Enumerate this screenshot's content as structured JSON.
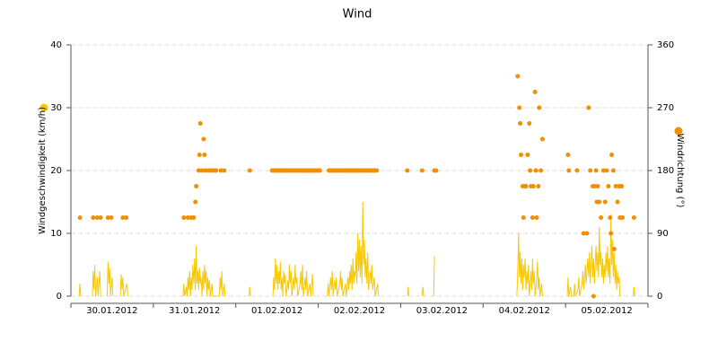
{
  "chart_data": {
    "type": "line-scatter",
    "title": "Wind",
    "xlim": [
      0,
      7
    ],
    "xticks": [
      {
        "value": 0.5,
        "label": "30.01.2012"
      },
      {
        "value": 1.5,
        "label": "31.01.2012"
      },
      {
        "value": 2.5,
        "label": "01.02.2012"
      },
      {
        "value": 3.5,
        "label": "02.02.2012"
      },
      {
        "value": 4.5,
        "label": "03.02.2012"
      },
      {
        "value": 5.5,
        "label": "04.02.2012"
      },
      {
        "value": 6.5,
        "label": "05.02.2012"
      }
    ],
    "ylim": [
      0,
      40
    ],
    "yticks": [
      0,
      10,
      20,
      30,
      40
    ],
    "y2lim": [
      0,
      360
    ],
    "y2ticks": [
      0,
      90,
      180,
      270,
      360
    ],
    "grid": true,
    "series": [
      {
        "name": "Windgeschwindigkeit (km/h)",
        "color": "#f9c800",
        "type": "line",
        "axis": "y",
        "x": [
          0.1,
          0.11,
          0.12,
          0.13,
          0.26,
          0.27,
          0.28,
          0.29,
          0.3,
          0.32,
          0.33,
          0.35,
          0.36,
          0.37,
          0.44,
          0.45,
          0.46,
          0.47,
          0.48,
          0.5,
          0.51,
          0.52,
          0.6,
          0.61,
          0.62,
          0.63,
          0.64,
          0.68,
          0.69,
          0.7,
          1.36,
          1.37,
          1.38,
          1.4,
          1.41,
          1.42,
          1.43,
          1.44,
          1.45,
          1.46,
          1.47,
          1.48,
          1.49,
          1.5,
          1.51,
          1.52,
          1.53,
          1.54,
          1.55,
          1.56,
          1.57,
          1.58,
          1.59,
          1.6,
          1.61,
          1.62,
          1.63,
          1.64,
          1.65,
          1.66,
          1.67,
          1.68,
          1.69,
          1.71,
          1.72,
          1.8,
          1.81,
          1.82,
          1.83,
          1.84,
          1.86,
          1.87,
          1.88,
          2.16,
          2.17,
          2.18,
          2.19,
          2.45,
          2.46,
          2.47,
          2.48,
          2.49,
          2.5,
          2.51,
          2.52,
          2.53,
          2.54,
          2.55,
          2.56,
          2.57,
          2.58,
          2.59,
          2.6,
          2.61,
          2.62,
          2.63,
          2.64,
          2.65,
          2.66,
          2.67,
          2.68,
          2.7,
          2.71,
          2.72,
          2.73,
          2.74,
          2.75,
          2.78,
          2.79,
          2.8,
          2.81,
          2.82,
          2.84,
          2.85,
          2.86,
          2.87,
          2.9,
          2.91,
          2.93,
          2.94,
          2.95,
          3.11,
          3.12,
          3.13,
          3.15,
          3.16,
          3.17,
          3.18,
          3.2,
          3.21,
          3.22,
          3.23,
          3.26,
          3.27,
          3.28,
          3.29,
          3.3,
          3.33,
          3.34,
          3.36,
          3.37,
          3.38,
          3.39,
          3.4,
          3.41,
          3.42,
          3.43,
          3.44,
          3.45,
          3.46,
          3.47,
          3.48,
          3.49,
          3.5,
          3.51,
          3.52,
          3.53,
          3.54,
          3.55,
          3.56,
          3.57,
          3.58,
          3.59,
          3.6,
          3.61,
          3.63,
          3.64,
          3.65,
          3.66,
          3.68,
          3.69,
          3.72,
          3.73,
          3.74,
          4.08,
          4.09,
          4.1,
          4.11,
          4.26,
          4.27,
          4.28,
          4.29,
          4.4,
          4.41,
          4.42,
          5.41,
          5.42,
          5.43,
          5.44,
          5.45,
          5.46,
          5.47,
          5.48,
          5.49,
          5.5,
          5.51,
          5.52,
          5.53,
          5.54,
          5.55,
          5.56,
          5.58,
          5.59,
          5.6,
          5.61,
          5.62,
          5.63,
          5.65,
          5.66,
          5.67,
          5.68,
          5.69,
          5.71,
          5.72,
          5.73,
          6.02,
          6.03,
          6.04,
          6.06,
          6.07,
          6.1,
          6.11,
          6.12,
          6.15,
          6.16,
          6.17,
          6.2,
          6.21,
          6.22,
          6.23,
          6.24,
          6.25,
          6.26,
          6.27,
          6.28,
          6.29,
          6.3,
          6.31,
          6.32,
          6.33,
          6.34,
          6.35,
          6.36,
          6.37,
          6.38,
          6.39,
          6.4,
          6.41,
          6.42,
          6.43,
          6.44,
          6.45,
          6.46,
          6.47,
          6.48,
          6.49,
          6.5,
          6.51,
          6.52,
          6.53,
          6.54,
          6.55,
          6.56,
          6.57,
          6.58,
          6.59,
          6.6,
          6.61,
          6.62,
          6.63,
          6.64,
          6.65,
          6.66,
          6.67,
          6.82,
          6.83,
          6.84
        ],
        "values": [
          0,
          2,
          0,
          null,
          0,
          4,
          1,
          5,
          0,
          3,
          0,
          4,
          0,
          null,
          0,
          5.5,
          2,
          4.5,
          0,
          3,
          0,
          null,
          0,
          3.5,
          1,
          3,
          0,
          2,
          0,
          null,
          0,
          2,
          0,
          1.5,
          0,
          3,
          1,
          4,
          0,
          3,
          1,
          5,
          2,
          6,
          1,
          8,
          2,
          4,
          1,
          4.5,
          2,
          3,
          0,
          4,
          1,
          5,
          2,
          4,
          0,
          3,
          1,
          2.5,
          0,
          2,
          0,
          0,
          3,
          1,
          4,
          0,
          2,
          0,
          null,
          0,
          1.5,
          0,
          null,
          0,
          3,
          1,
          6,
          2,
          5,
          1,
          4,
          2,
          5.5,
          1,
          3,
          0,
          4,
          2,
          3.5,
          0,
          1,
          2.5,
          1,
          5,
          2,
          4,
          0,
          3,
          1,
          5,
          2,
          3,
          0,
          2,
          4,
          1,
          5,
          0,
          3,
          1,
          4,
          0,
          2,
          0,
          3.5,
          0,
          null,
          0,
          2,
          0,
          3,
          1,
          4,
          0,
          2.5,
          1,
          3,
          0,
          2,
          4,
          1,
          3,
          0,
          2,
          0,
          3,
          1,
          4,
          2,
          5,
          1,
          6,
          2,
          4,
          3,
          7,
          2,
          10,
          4,
          9,
          3,
          8,
          2,
          15,
          5,
          9,
          3,
          6,
          2,
          7,
          1,
          4,
          2,
          5,
          1,
          3,
          0,
          2,
          0,
          null,
          0,
          1.5,
          0,
          null,
          0,
          1.5,
          0,
          null,
          0,
          6.3,
          null,
          0,
          4,
          10,
          3,
          7,
          2,
          6,
          1,
          5,
          3,
          6,
          1,
          4,
          2,
          5,
          0,
          4,
          1,
          6,
          2,
          4,
          0,
          3,
          5.5,
          1,
          3,
          0,
          2,
          0,
          null,
          0,
          3,
          0,
          1.5,
          0,
          0,
          2,
          0,
          1,
          3,
          0,
          2,
          4,
          1,
          3,
          5,
          2,
          4,
          6,
          3,
          7,
          2,
          5,
          8,
          3,
          6,
          2,
          5,
          8,
          4,
          7,
          3,
          11,
          5,
          7,
          3,
          6,
          2,
          5,
          3,
          7,
          4,
          8,
          3,
          6,
          2,
          13,
          5,
          9,
          3,
          7,
          2,
          5,
          1,
          4,
          2,
          3,
          0,
          null,
          0,
          1.5,
          0
        ]
      },
      {
        "name": "Windrichtung (°)",
        "color": "#f28f00",
        "type": "scatter",
        "axis": "y2",
        "x": [
          0.11,
          0.27,
          0.32,
          0.36,
          0.45,
          0.49,
          0.63,
          0.67,
          1.37,
          1.42,
          1.46,
          1.49,
          1.51,
          1.52,
          1.55,
          1.56,
          1.57,
          1.59,
          1.61,
          1.62,
          1.63,
          1.67,
          1.7,
          1.73,
          1.76,
          1.82,
          1.86,
          2.17,
          2.44,
          2.46,
          2.48,
          2.5,
          2.52,
          2.54,
          2.56,
          2.58,
          2.6,
          2.62,
          2.64,
          2.66,
          2.68,
          2.7,
          2.72,
          2.74,
          2.76,
          2.78,
          2.8,
          2.82,
          2.84,
          2.86,
          2.88,
          2.9,
          2.92,
          2.94,
          2.96,
          2.98,
          3.0,
          3.02,
          3.13,
          3.15,
          3.17,
          3.19,
          3.21,
          3.23,
          3.25,
          3.27,
          3.29,
          3.31,
          3.33,
          3.35,
          3.37,
          3.39,
          3.41,
          3.43,
          3.45,
          3.47,
          3.49,
          3.51,
          3.53,
          3.55,
          3.57,
          3.59,
          3.61,
          3.63,
          3.65,
          3.67,
          3.69,
          3.71,
          4.08,
          4.26,
          4.41,
          4.43,
          5.42,
          5.44,
          5.45,
          5.46,
          5.48,
          5.49,
          5.51,
          5.52,
          5.54,
          5.56,
          5.57,
          5.58,
          5.6,
          5.61,
          5.63,
          5.64,
          5.65,
          5.67,
          5.68,
          5.7,
          5.72,
          6.03,
          6.04,
          6.14,
          6.22,
          6.26,
          6.28,
          6.3,
          6.33,
          6.34,
          6.35,
          6.37,
          6.38,
          6.39,
          6.41,
          6.43,
          6.46,
          6.48,
          6.5,
          6.52,
          6.54,
          6.55,
          6.56,
          6.58,
          6.59,
          6.61,
          6.63,
          6.65,
          6.66,
          6.68,
          6.69,
          6.83
        ],
        "values": [
          112.5,
          112.5,
          112.5,
          112.5,
          112.5,
          112.5,
          112.5,
          112.5,
          112.5,
          112.5,
          112.5,
          112.5,
          135,
          157.5,
          180,
          202.5,
          247.5,
          180,
          225,
          202.5,
          180,
          180,
          180,
          180,
          180,
          180,
          180,
          180,
          180,
          180,
          180,
          180,
          180,
          180,
          180,
          180,
          180,
          180,
          180,
          180,
          180,
          180,
          180,
          180,
          180,
          180,
          180,
          180,
          180,
          180,
          180,
          180,
          180,
          180,
          180,
          180,
          180,
          180,
          180,
          180,
          180,
          180,
          180,
          180,
          180,
          180,
          180,
          180,
          180,
          180,
          180,
          180,
          180,
          180,
          180,
          180,
          180,
          180,
          180,
          180,
          180,
          180,
          180,
          180,
          180,
          180,
          180,
          180,
          180,
          180,
          180,
          180,
          315,
          270,
          247.5,
          202.5,
          157.5,
          112.5,
          157.5,
          157.5,
          202.5,
          247.5,
          180,
          157.5,
          112.5,
          157.5,
          292.5,
          180,
          112.5,
          157.5,
          270,
          180,
          225,
          202.5,
          180,
          180,
          90,
          90,
          270,
          180,
          157.5,
          0,
          157.5,
          180,
          135,
          157.5,
          135,
          112.5,
          180,
          135,
          180,
          157.5,
          112.5,
          90,
          202.5,
          180,
          67.5,
          157.5,
          135,
          157.5,
          112.5,
          157.5,
          112.5,
          112.5
        ]
      }
    ]
  }
}
